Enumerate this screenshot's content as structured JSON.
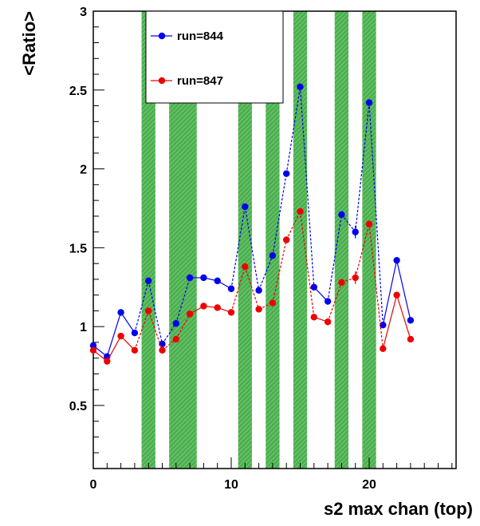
{
  "chart_data": {
    "type": "line",
    "title": "",
    "xlabel": "s2 max chan (top)",
    "ylabel": "<Ratio>",
    "xlim": [
      0,
      26.3
    ],
    "ylim": [
      0.1,
      3.0
    ],
    "x_ticks": [
      0,
      10,
      20
    ],
    "y_ticks": [
      0.5,
      1,
      1.5,
      2,
      2.5,
      3
    ],
    "y_tick_labels": [
      "0.5",
      "1",
      "1.5",
      "2",
      "2.5",
      "3"
    ],
    "x_tick_labels": [
      "0",
      "10",
      "20"
    ],
    "grid": false,
    "legend_position": "top-left",
    "highlight_bands": [
      [
        3.5,
        4.5
      ],
      [
        5.5,
        7.5
      ],
      [
        10.5,
        11.5
      ],
      [
        12.5,
        13.5
      ],
      [
        14.5,
        15.5
      ],
      [
        17.5,
        18.5
      ],
      [
        19.5,
        20.5
      ]
    ],
    "highlight_color": "#4caf50",
    "series": [
      {
        "name": "run=844",
        "color": "#0000ee",
        "x": [
          0,
          1,
          2,
          3,
          4,
          5,
          6,
          7,
          8,
          9,
          10,
          11,
          12,
          13,
          14,
          15,
          16,
          17,
          18,
          19,
          20,
          21,
          22,
          23
        ],
        "y": [
          0.88,
          0.81,
          1.09,
          0.96,
          1.29,
          0.89,
          1.02,
          1.31,
          1.31,
          1.29,
          1.24,
          1.76,
          1.23,
          1.45,
          1.97,
          2.52,
          1.25,
          1.16,
          1.71,
          1.6,
          2.42,
          1.01,
          1.42,
          1.04
        ],
        "err": [
          0.02,
          0.02,
          0.02,
          0.02,
          0.02,
          0.02,
          0.02,
          0.02,
          0.02,
          0.02,
          0.02,
          0.02,
          0.02,
          0.02,
          0.02,
          0.02,
          0.02,
          0.02,
          0.02,
          0.04,
          0.02,
          0.02,
          0.02,
          0.02
        ],
        "dashed_from": [
          3,
          4,
          5,
          6,
          10,
          11,
          12,
          13,
          14,
          15,
          17,
          18,
          19,
          20
        ]
      },
      {
        "name": "run=847",
        "color": "#ee0000",
        "x": [
          0,
          1,
          2,
          3,
          4,
          5,
          6,
          7,
          8,
          9,
          10,
          11,
          12,
          13,
          14,
          15,
          16,
          17,
          18,
          19,
          20,
          21,
          22,
          23
        ],
        "y": [
          0.85,
          0.78,
          0.94,
          0.85,
          1.1,
          0.85,
          0.92,
          1.08,
          1.13,
          1.12,
          1.09,
          1.38,
          1.11,
          1.15,
          1.55,
          1.73,
          1.06,
          1.03,
          1.28,
          1.31,
          1.65,
          0.86,
          1.2,
          0.92
        ],
        "err": [
          0.02,
          0.02,
          0.02,
          0.02,
          0.02,
          0.02,
          0.02,
          0.02,
          0.02,
          0.02,
          0.02,
          0.02,
          0.02,
          0.02,
          0.02,
          0.02,
          0.02,
          0.02,
          0.02,
          0.04,
          0.02,
          0.02,
          0.02,
          0.02
        ],
        "dashed_from": [
          3,
          4,
          5,
          6,
          10,
          11,
          12,
          13,
          14,
          15,
          17,
          18,
          19,
          20
        ]
      }
    ]
  }
}
